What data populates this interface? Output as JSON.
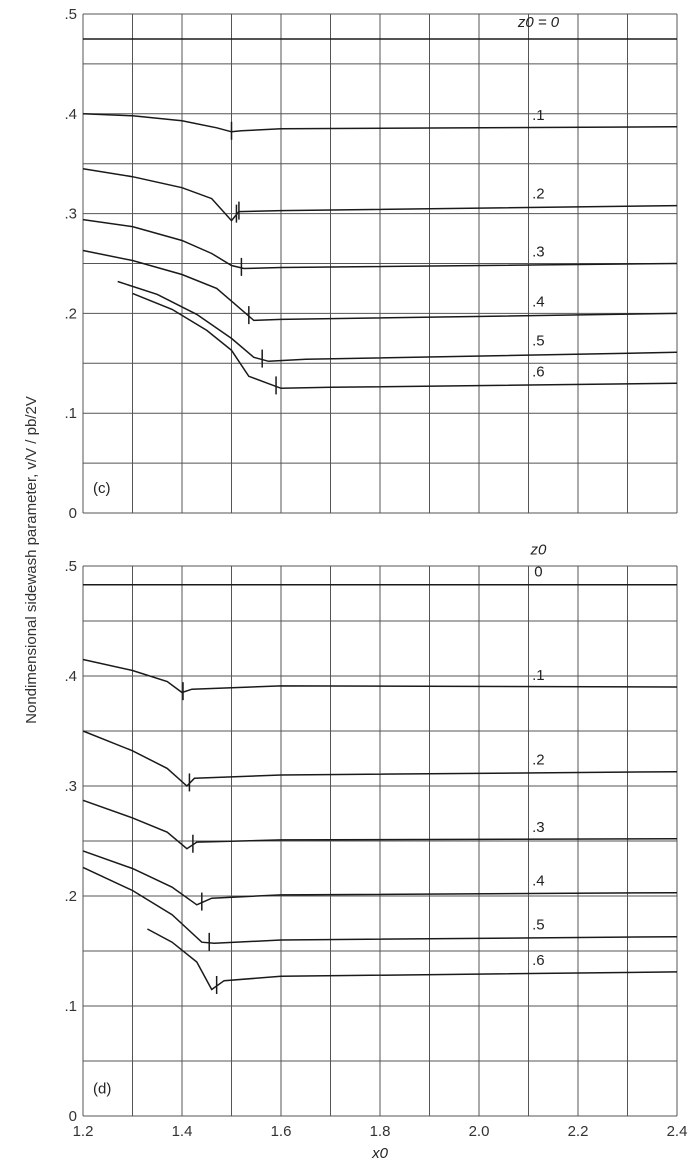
{
  "chart_data": [
    {
      "type": "line",
      "panel_label": "(c)",
      "legend_title": "z0 = 0",
      "xlabel": "x0",
      "ylabel": "Nondimensional sidewash parameter, v/V / pb/2V",
      "xlim": [
        1.2,
        2.4
      ],
      "ylim": [
        0,
        0.5
      ],
      "y_ticks": [
        ".5",
        ".4",
        ".3",
        ".2",
        ".1",
        "0"
      ],
      "grid": true,
      "series": [
        {
          "name": "0",
          "label": "",
          "x": [
            1.2,
            2.4
          ],
          "y": [
            0.475,
            0.475
          ],
          "mark_x": null
        },
        {
          "name": ".1",
          "label": ".1",
          "x": [
            1.2,
            1.3,
            1.4,
            1.47,
            1.5,
            1.52,
            1.6,
            2.4
          ],
          "y": [
            0.4,
            0.398,
            0.393,
            0.386,
            0.382,
            0.383,
            0.385,
            0.387
          ],
          "mark_x": [
            1.5
          ]
        },
        {
          "name": ".2",
          "label": ".2",
          "x": [
            1.2,
            1.3,
            1.4,
            1.46,
            1.5,
            1.515,
            1.6,
            2.4
          ],
          "y": [
            0.345,
            0.337,
            0.326,
            0.315,
            0.293,
            0.302,
            0.303,
            0.308
          ],
          "mark_x": [
            1.51,
            1.515
          ]
        },
        {
          "name": ".3",
          "label": ".3",
          "x": [
            1.2,
            1.3,
            1.4,
            1.46,
            1.5,
            1.525,
            1.6,
            2.4
          ],
          "y": [
            0.294,
            0.287,
            0.273,
            0.26,
            0.248,
            0.245,
            0.246,
            0.25
          ],
          "mark_x": [
            1.52
          ]
        },
        {
          "name": ".4",
          "label": ".4",
          "x": [
            1.2,
            1.3,
            1.4,
            1.47,
            1.51,
            1.545,
            1.6,
            2.4
          ],
          "y": [
            0.263,
            0.253,
            0.239,
            0.225,
            0.208,
            0.193,
            0.194,
            0.2
          ],
          "mark_x": [
            1.535
          ]
        },
        {
          "name": ".5",
          "label": ".5",
          "x": [
            1.27,
            1.35,
            1.43,
            1.5,
            1.545,
            1.575,
            1.65,
            2.4
          ],
          "y": [
            0.232,
            0.219,
            0.199,
            0.175,
            0.156,
            0.152,
            0.154,
            0.161
          ],
          "mark_x": [
            1.562
          ]
        },
        {
          "name": ".6",
          "label": ".6",
          "x": [
            1.3,
            1.38,
            1.45,
            1.5,
            1.535,
            1.6,
            1.7,
            2.4
          ],
          "y": [
            0.22,
            0.204,
            0.183,
            0.163,
            0.137,
            0.125,
            0.126,
            0.13
          ],
          "mark_x": [
            1.59
          ]
        }
      ]
    },
    {
      "type": "line",
      "panel_label": "(d)",
      "legend_title": "z0",
      "legend_first": "0",
      "xlabel": "x0",
      "ylabel": "Nondimensional sidewash parameter, v/V / pb/2V",
      "xlim": [
        1.2,
        2.4
      ],
      "ylim": [
        0,
        0.5
      ],
      "x_ticks": [
        "1.2",
        "1.4",
        "1.6",
        "1.8",
        "2.0",
        "2.2",
        "2.4"
      ],
      "y_ticks": [
        ".5",
        ".4",
        ".3",
        ".2",
        ".1",
        "0"
      ],
      "grid": true,
      "series": [
        {
          "name": "0",
          "label": "",
          "x": [
            1.2,
            2.4
          ],
          "y": [
            0.483,
            0.483
          ],
          "mark_x": null
        },
        {
          "name": ".1",
          "label": ".1",
          "x": [
            1.2,
            1.3,
            1.37,
            1.4,
            1.42,
            1.6,
            2.4
          ],
          "y": [
            0.415,
            0.405,
            0.395,
            0.385,
            0.388,
            0.391,
            0.39
          ],
          "mark_x": [
            1.402
          ]
        },
        {
          "name": ".2",
          "label": ".2",
          "x": [
            1.2,
            1.3,
            1.37,
            1.41,
            1.425,
            1.6,
            2.4
          ],
          "y": [
            0.35,
            0.332,
            0.316,
            0.3,
            0.307,
            0.31,
            0.313
          ],
          "mark_x": [
            1.415
          ]
        },
        {
          "name": ".3",
          "label": ".3",
          "x": [
            1.2,
            1.3,
            1.37,
            1.41,
            1.43,
            1.6,
            2.4
          ],
          "y": [
            0.287,
            0.271,
            0.258,
            0.243,
            0.249,
            0.251,
            0.252
          ],
          "mark_x": [
            1.422
          ]
        },
        {
          "name": ".4",
          "label": ".4",
          "x": [
            1.2,
            1.3,
            1.38,
            1.43,
            1.46,
            1.6,
            2.4
          ],
          "y": [
            0.241,
            0.225,
            0.208,
            0.192,
            0.198,
            0.201,
            0.203
          ],
          "mark_x": [
            1.44
          ]
        },
        {
          "name": ".5",
          "label": ".5",
          "x": [
            1.2,
            1.3,
            1.38,
            1.44,
            1.465,
            1.6,
            2.4
          ],
          "y": [
            0.226,
            0.205,
            0.183,
            0.158,
            0.157,
            0.16,
            0.163
          ],
          "mark_x": [
            1.455
          ]
        },
        {
          "name": ".6",
          "label": ".6",
          "x": [
            1.33,
            1.38,
            1.43,
            1.46,
            1.485,
            1.6,
            2.4
          ],
          "y": [
            0.17,
            0.158,
            0.14,
            0.115,
            0.123,
            0.127,
            0.131
          ],
          "mark_x": [
            1.47
          ]
        }
      ]
    }
  ]
}
